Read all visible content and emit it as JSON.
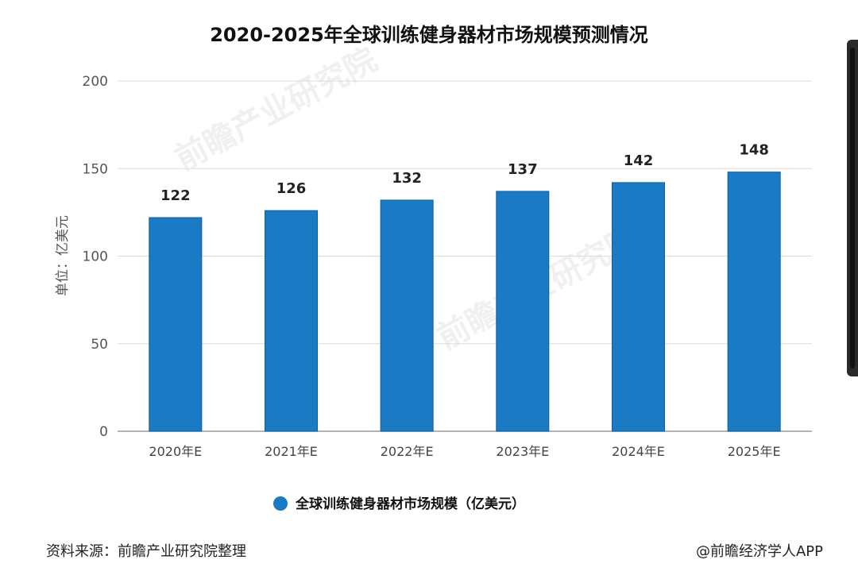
{
  "chart_data": {
    "type": "bar",
    "title": "2020-2025年全球训练健身器材市场规模预测情况",
    "ylabel": "单位：亿美元",
    "categories": [
      "2020年E",
      "2021年E",
      "2022年E",
      "2023年E",
      "2024年E",
      "2025年E"
    ],
    "series": [
      {
        "name": "全球训练健身器材市场规模（亿美元）",
        "values": [
          122,
          126,
          132,
          137,
          142,
          148
        ]
      }
    ],
    "ylim": [
      0,
      200
    ],
    "yticks": [
      "0",
      "50",
      "100",
      "150",
      "200"
    ],
    "grid": true,
    "legend_position": "bottom",
    "bar_color": "#1a7ac4",
    "bar_edge_color": "#0f5e9c"
  },
  "footer": {
    "source": "资料来源：前瞻产业研究院整理",
    "credit": "@前瞻经济学人APP"
  },
  "watermark": {
    "text": "前瞻产业研究院"
  }
}
